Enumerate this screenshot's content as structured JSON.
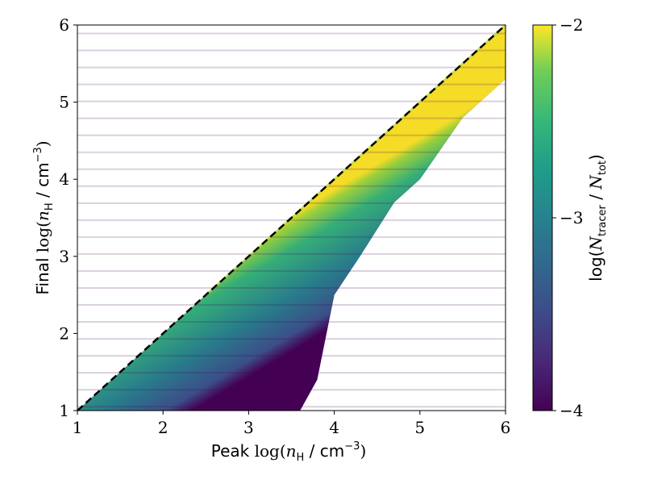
{
  "chart_data": {
    "type": "heatmap",
    "xlabel_prefix": "Peak",
    "ylabel_prefix": "Final",
    "axis_quantity": "log(n_H / cm^-3)",
    "xlim": [
      1,
      6
    ],
    "ylim": [
      1,
      6
    ],
    "x_ticks": [
      "1",
      "2",
      "3",
      "4",
      "5",
      "6"
    ],
    "y_ticks": [
      "1",
      "2",
      "3",
      "4",
      "5",
      "6"
    ],
    "colorbar": {
      "label": "log(N_tracer / N_tot)",
      "range": [
        -4,
        -2
      ],
      "ticks": [
        "−2",
        "−3",
        "−4"
      ],
      "colormap": "viridis"
    },
    "reference_line": {
      "style": "dashed",
      "color": "#000000",
      "from": [
        1,
        1
      ],
      "to": [
        6,
        6
      ]
    },
    "distribution": {
      "description_points": [
        {
          "x": 1.0,
          "lower_y": 1.0
        },
        {
          "x": 2.0,
          "lower_y": 1.0
        },
        {
          "x": 3.0,
          "lower_y": 1.0
        },
        {
          "x": 3.6,
          "lower_y": 1.0
        },
        {
          "x": 3.8,
          "lower_y": 1.4
        },
        {
          "x": 4.0,
          "lower_y": 2.5
        },
        {
          "x": 4.3,
          "lower_y": 3.0
        },
        {
          "x": 4.7,
          "lower_y": 3.7
        },
        {
          "x": 5.0,
          "lower_y": 4.0
        },
        {
          "x": 5.5,
          "lower_y": 4.8
        },
        {
          "x": 6.0,
          "lower_y": 5.3
        }
      ]
    }
  }
}
